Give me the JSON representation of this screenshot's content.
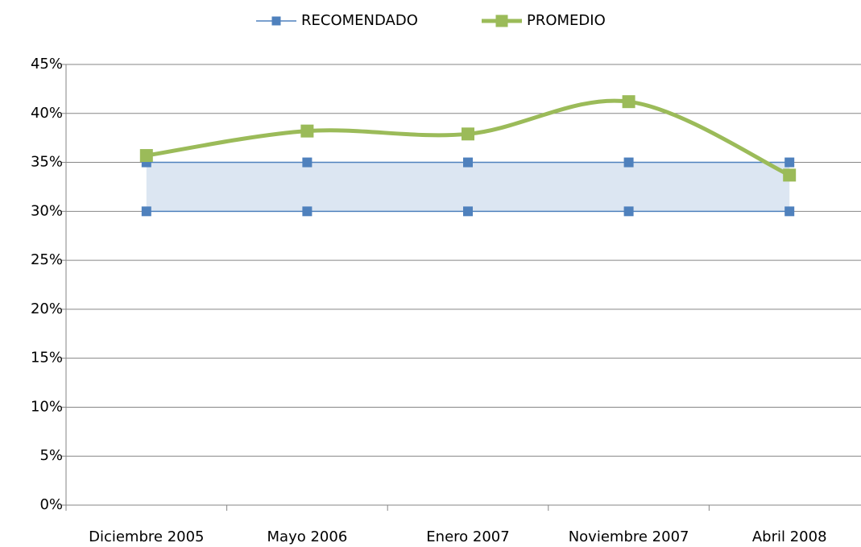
{
  "chart_data": {
    "type": "line",
    "categories": [
      "Diciembre 2005",
      "Mayo 2006",
      "Enero 2007",
      "Noviembre 2007",
      "Abril 2008"
    ],
    "series": [
      {
        "name": "RECOMENDADO",
        "color": "#4f81bd",
        "band_color": "#dce6f2",
        "values": [
          35,
          35,
          35,
          35,
          35
        ],
        "low": [
          30,
          30,
          30,
          30,
          30
        ]
      },
      {
        "name": "PROMEDIO",
        "color": "#9bbb59",
        "values": [
          35.7,
          38.2,
          37.9,
          41.2,
          33.7
        ],
        "smooth": true
      }
    ],
    "ylim": [
      0,
      45
    ],
    "yticks": [
      {
        "value": 0,
        "label": "0%"
      },
      {
        "value": 5,
        "label": "5%"
      },
      {
        "value": 10,
        "label": "10%"
      },
      {
        "value": 15,
        "label": "15%"
      },
      {
        "value": 20,
        "label": "20%"
      },
      {
        "value": 25,
        "label": "25%"
      },
      {
        "value": 30,
        "label": "30%"
      },
      {
        "value": 35,
        "label": "35%"
      },
      {
        "value": 40,
        "label": "40%"
      },
      {
        "value": 45,
        "label": "45%"
      }
    ],
    "grid": true,
    "legend": "top"
  }
}
